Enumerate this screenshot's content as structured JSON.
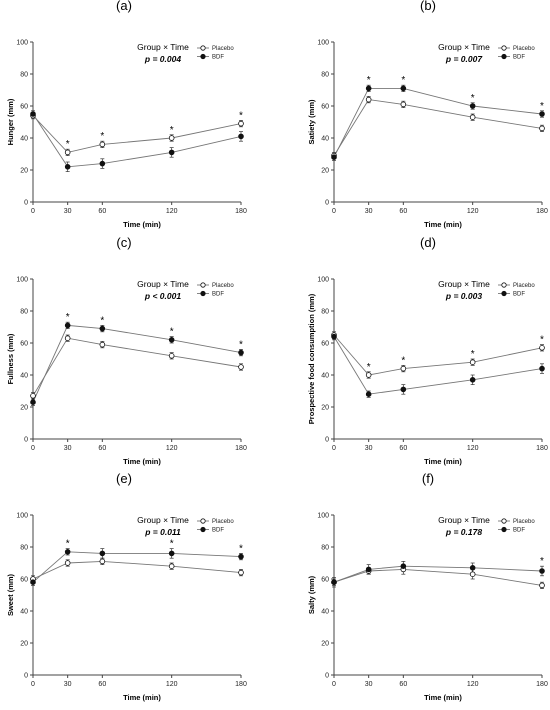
{
  "panels": [
    {
      "letter": "(a)",
      "group_label": "Group × Time",
      "p_label": "p = 0.004"
    },
    {
      "letter": "(b)",
      "group_label": "Group × Time",
      "p_label": "p = 0.007"
    },
    {
      "letter": "(c)",
      "group_label": "Group × Time",
      "p_label": "p < 0.001"
    },
    {
      "letter": "(d)",
      "group_label": "Group × Time",
      "p_label": "p = 0.003"
    },
    {
      "letter": "(e)",
      "group_label": "Group × Time",
      "p_label": "p = 0.011"
    },
    {
      "letter": "(f)",
      "group_label": "Group × Time",
      "p_label": "p = 0.178"
    }
  ],
  "chart_data": [
    {
      "type": "line",
      "title": "(a)",
      "xlabel": "Time (min)",
      "ylabel": "Hunger (mm)",
      "x": [
        0,
        30,
        60,
        120,
        180
      ],
      "xlim": [
        0,
        180
      ],
      "ylim": [
        0,
        100
      ],
      "xticks": [
        0,
        30,
        60,
        120,
        180
      ],
      "yticks": [
        0,
        20,
        40,
        60,
        80,
        100
      ],
      "legend_position": "top-right",
      "series": [
        {
          "name": "Placebo",
          "marker": "open-circle",
          "values": [
            54,
            31,
            36,
            40,
            49
          ],
          "errors": [
            2,
            2,
            2,
            2,
            2
          ]
        },
        {
          "name": "BDF",
          "marker": "filled-circle",
          "values": [
            55,
            22,
            24,
            31,
            41
          ],
          "errors": [
            2,
            3,
            3,
            3,
            3
          ]
        }
      ],
      "significance_at_x": [
        30,
        60,
        120,
        180
      ]
    },
    {
      "type": "line",
      "title": "(b)",
      "xlabel": "Time (min)",
      "ylabel": "Satiety (mm)",
      "x": [
        0,
        30,
        60,
        120,
        180
      ],
      "xlim": [
        0,
        180
      ],
      "ylim": [
        0,
        100
      ],
      "xticks": [
        0,
        30,
        60,
        120,
        180
      ],
      "yticks": [
        0,
        20,
        40,
        60,
        80,
        100
      ],
      "legend_position": "top-right",
      "series": [
        {
          "name": "Placebo",
          "marker": "open-circle",
          "values": [
            29,
            64,
            61,
            53,
            46
          ],
          "errors": [
            2,
            2,
            2,
            2,
            2
          ]
        },
        {
          "name": "BDF",
          "marker": "filled-circle",
          "values": [
            28,
            71,
            71,
            60,
            55
          ],
          "errors": [
            2,
            2,
            2,
            2,
            2
          ]
        }
      ],
      "significance_at_x": [
        30,
        60,
        120,
        180
      ]
    },
    {
      "type": "line",
      "title": "(c)",
      "xlabel": "Time (min)",
      "ylabel": "Fullness (mm)",
      "x": [
        0,
        30,
        60,
        120,
        180
      ],
      "xlim": [
        0,
        180
      ],
      "ylim": [
        0,
        100
      ],
      "xticks": [
        0,
        30,
        60,
        120,
        180
      ],
      "yticks": [
        0,
        20,
        40,
        60,
        80,
        100
      ],
      "legend_position": "top-right",
      "series": [
        {
          "name": "Placebo",
          "marker": "open-circle",
          "values": [
            27,
            63,
            59,
            52,
            45
          ],
          "errors": [
            2,
            2,
            2,
            2,
            2
          ]
        },
        {
          "name": "BDF",
          "marker": "filled-circle",
          "values": [
            23,
            71,
            69,
            62,
            54
          ],
          "errors": [
            2,
            2,
            2,
            2,
            2
          ]
        }
      ],
      "significance_at_x": [
        30,
        60,
        120,
        180
      ]
    },
    {
      "type": "line",
      "title": "(d)",
      "xlabel": "Time (min)",
      "ylabel": "Prospective food consumption (mm)",
      "x": [
        0,
        30,
        60,
        120,
        180
      ],
      "xlim": [
        0,
        180
      ],
      "ylim": [
        0,
        100
      ],
      "xticks": [
        0,
        30,
        60,
        120,
        180
      ],
      "yticks": [
        0,
        20,
        40,
        60,
        80,
        100
      ],
      "legend_position": "top-right",
      "series": [
        {
          "name": "Placebo",
          "marker": "open-circle",
          "values": [
            65,
            40,
            44,
            48,
            57
          ],
          "errors": [
            2,
            2,
            2,
            2,
            2
          ]
        },
        {
          "name": "BDF",
          "marker": "filled-circle",
          "values": [
            64,
            28,
            31,
            37,
            44
          ],
          "errors": [
            2,
            2,
            3,
            3,
            3
          ]
        }
      ],
      "significance_at_x": [
        30,
        60,
        120,
        180
      ]
    },
    {
      "type": "line",
      "title": "(e)",
      "xlabel": "Time (min)",
      "ylabel": "Sweet (mm)",
      "x": [
        0,
        30,
        60,
        120,
        180
      ],
      "xlim": [
        0,
        180
      ],
      "ylim": [
        0,
        100
      ],
      "xticks": [
        0,
        30,
        60,
        120,
        180
      ],
      "yticks": [
        0,
        20,
        40,
        60,
        80,
        100
      ],
      "legend_position": "top-right",
      "series": [
        {
          "name": "Placebo",
          "marker": "open-circle",
          "values": [
            60,
            70,
            71,
            68,
            64
          ],
          "errors": [
            2,
            2,
            2,
            2,
            2
          ]
        },
        {
          "name": "BDF",
          "marker": "filled-circle",
          "values": [
            58,
            77,
            76,
            76,
            74
          ],
          "errors": [
            2,
            2,
            3,
            3,
            2
          ]
        }
      ],
      "significance_at_x": [
        30,
        120,
        180
      ]
    },
    {
      "type": "line",
      "title": "(f)",
      "xlabel": "Time (min)",
      "ylabel": "Salty (mm)",
      "x": [
        0,
        30,
        60,
        120,
        180
      ],
      "xlim": [
        0,
        180
      ],
      "ylim": [
        0,
        100
      ],
      "xticks": [
        0,
        30,
        60,
        120,
        180
      ],
      "yticks": [
        0,
        20,
        40,
        60,
        80,
        100
      ],
      "legend_position": "top-right",
      "series": [
        {
          "name": "Placebo",
          "marker": "open-circle",
          "values": [
            58,
            65,
            66,
            63,
            56
          ],
          "errors": [
            2,
            2,
            3,
            3,
            2
          ]
        },
        {
          "name": "BDF",
          "marker": "filled-circle",
          "values": [
            58,
            66,
            68,
            67,
            65
          ],
          "errors": [
            3,
            3,
            3,
            3,
            3
          ]
        }
      ],
      "significance_at_x": [
        180
      ]
    }
  ]
}
